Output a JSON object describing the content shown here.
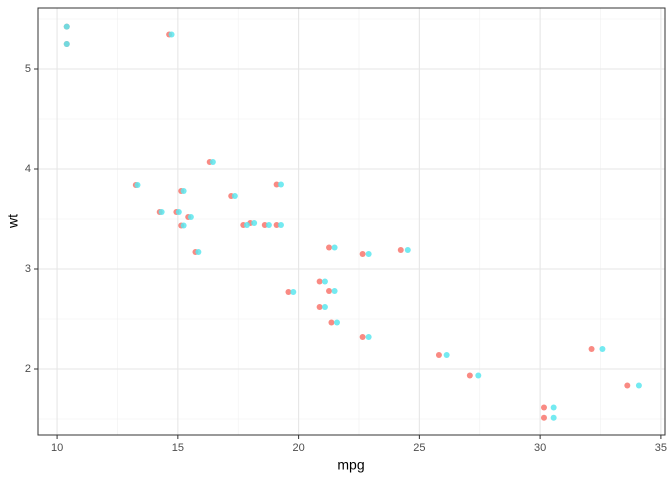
{
  "chart_data": {
    "type": "scatter",
    "x_label": "mpg",
    "y_label": "wt",
    "series": [
      {
        "color": "#F8766D",
        "x": [
          20.87,
          20.87,
          22.65,
          21.26,
          18.6,
          18.0,
          14.25,
          24.23,
          22.65,
          19.09,
          17.71,
          16.32,
          17.21,
          15.14,
          10.4,
          10.4,
          14.64,
          32.13,
          30.16,
          33.61,
          21.36,
          15.43,
          15.14,
          13.26,
          19.09,
          27.09,
          25.81,
          30.16,
          15.73,
          19.58,
          14.94,
          21.26
        ],
        "values": [
          2.62,
          2.875,
          2.32,
          3.215,
          3.44,
          3.46,
          3.57,
          3.19,
          3.15,
          3.44,
          3.44,
          4.07,
          3.73,
          3.78,
          5.25,
          5.424,
          5.345,
          2.2,
          1.615,
          1.835,
          2.465,
          3.52,
          3.435,
          3.84,
          3.845,
          1.935,
          2.14,
          1.513,
          3.17,
          2.77,
          3.57,
          2.78
        ]
      },
      {
        "color": "#5CE6EE",
        "x": [
          21.09,
          21.09,
          22.9,
          21.49,
          18.77,
          18.16,
          14.33,
          24.52,
          22.9,
          19.27,
          17.86,
          16.45,
          17.36,
          15.24,
          10.4,
          10.4,
          14.74,
          32.58,
          30.56,
          34.09,
          21.59,
          15.54,
          15.24,
          13.33,
          19.27,
          27.44,
          26.13,
          30.56,
          15.85,
          19.78,
          15.04,
          21.49
        ],
        "values": [
          2.62,
          2.875,
          2.32,
          3.215,
          3.44,
          3.46,
          3.57,
          3.19,
          3.15,
          3.44,
          3.44,
          4.07,
          3.73,
          3.78,
          5.25,
          5.424,
          5.345,
          2.2,
          1.615,
          1.835,
          2.465,
          3.52,
          3.435,
          3.84,
          3.845,
          1.935,
          2.14,
          1.513,
          3.17,
          2.77,
          3.57,
          2.78
        ]
      }
    ],
    "xlim": [
      9.21,
      35.17
    ],
    "ylim": [
      1.34,
      5.61
    ],
    "xticks": [
      10,
      15,
      20,
      25,
      30,
      35
    ],
    "yticks": [
      2,
      3,
      4,
      5
    ],
    "x_minor_ticks": [
      12.5,
      17.5,
      22.5,
      27.5,
      32.5
    ],
    "y_minor_ticks": [
      1.5,
      2.5,
      3.5,
      4.5,
      5.5
    ],
    "grid": true
  }
}
